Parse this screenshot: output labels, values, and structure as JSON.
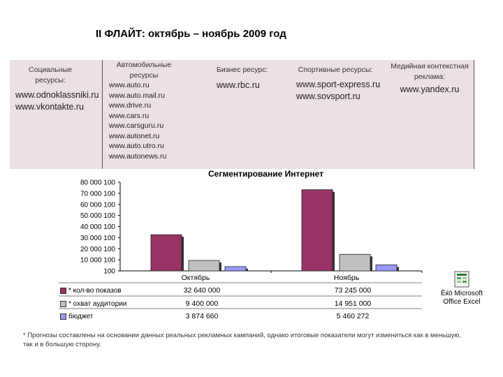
{
  "page_title": "II ФЛАЙТ: октябрь – ноябрь 2009 год",
  "columns": [
    {
      "header": "Социальные ресурсы:",
      "links": [
        "www.odnoklassniki.ru",
        "www.vkontakte.ru"
      ]
    },
    {
      "header": "Автомобильные ресурсы",
      "links": [
        "www.auto.ru",
        "www.auto.mail.ru",
        "www.drive.ru",
        "www.cars.ru",
        "www.carsguru.ru",
        "www.autonet.ru",
        "www.auto.utro.ru",
        "www.autonews.ru"
      ]
    },
    {
      "header": "Бизнес ресурс:",
      "links": [
        "www.rbc.ru"
      ]
    },
    {
      "header": "Спортивные ресурсы:",
      "links": [
        "www.sport-express.ru",
        "www.sovsport.ru"
      ]
    },
    {
      "header": "Медийная контекстная реклама:",
      "links": [
        "www.yandex.ru"
      ]
    }
  ],
  "chart_data": {
    "type": "bar",
    "title": "Сегментирование Интернет",
    "categories": [
      "Октябрь",
      "Ноябрь"
    ],
    "yticks": [
      "80 000 100",
      "70 000 100",
      "60 000 100",
      "50 000 100",
      "40 000 100",
      "30 000 100",
      "20 000 100",
      "10 000 100",
      "100"
    ],
    "ylim": [
      100,
      80000100
    ],
    "series": [
      {
        "name": "* кол-во показов",
        "values": [
          32640000,
          73245000
        ],
        "labels": [
          "32 640 000",
          "73 245 000"
        ],
        "color": "#993366"
      },
      {
        "name": "* охват аудитории",
        "values": [
          9400000,
          14951000
        ],
        "labels": [
          "9 400 000",
          "14 951 000"
        ],
        "color": "#c0c0c0"
      },
      {
        "name": "бюджет",
        "values": [
          3874660,
          5460272
        ],
        "labels": [
          "3 874 660",
          "5 460 272"
        ],
        "color": "#9999ff"
      }
    ]
  },
  "excel": {
    "caption_line1": "Ёќö Microsoft",
    "caption_line2": "Office Excel"
  },
  "footnote": "*  Прогнозы составлены на основании данных реальных рекламных кампаний, однако итоговые показатели могут измениться как в меньшую, так и в большую сторону."
}
